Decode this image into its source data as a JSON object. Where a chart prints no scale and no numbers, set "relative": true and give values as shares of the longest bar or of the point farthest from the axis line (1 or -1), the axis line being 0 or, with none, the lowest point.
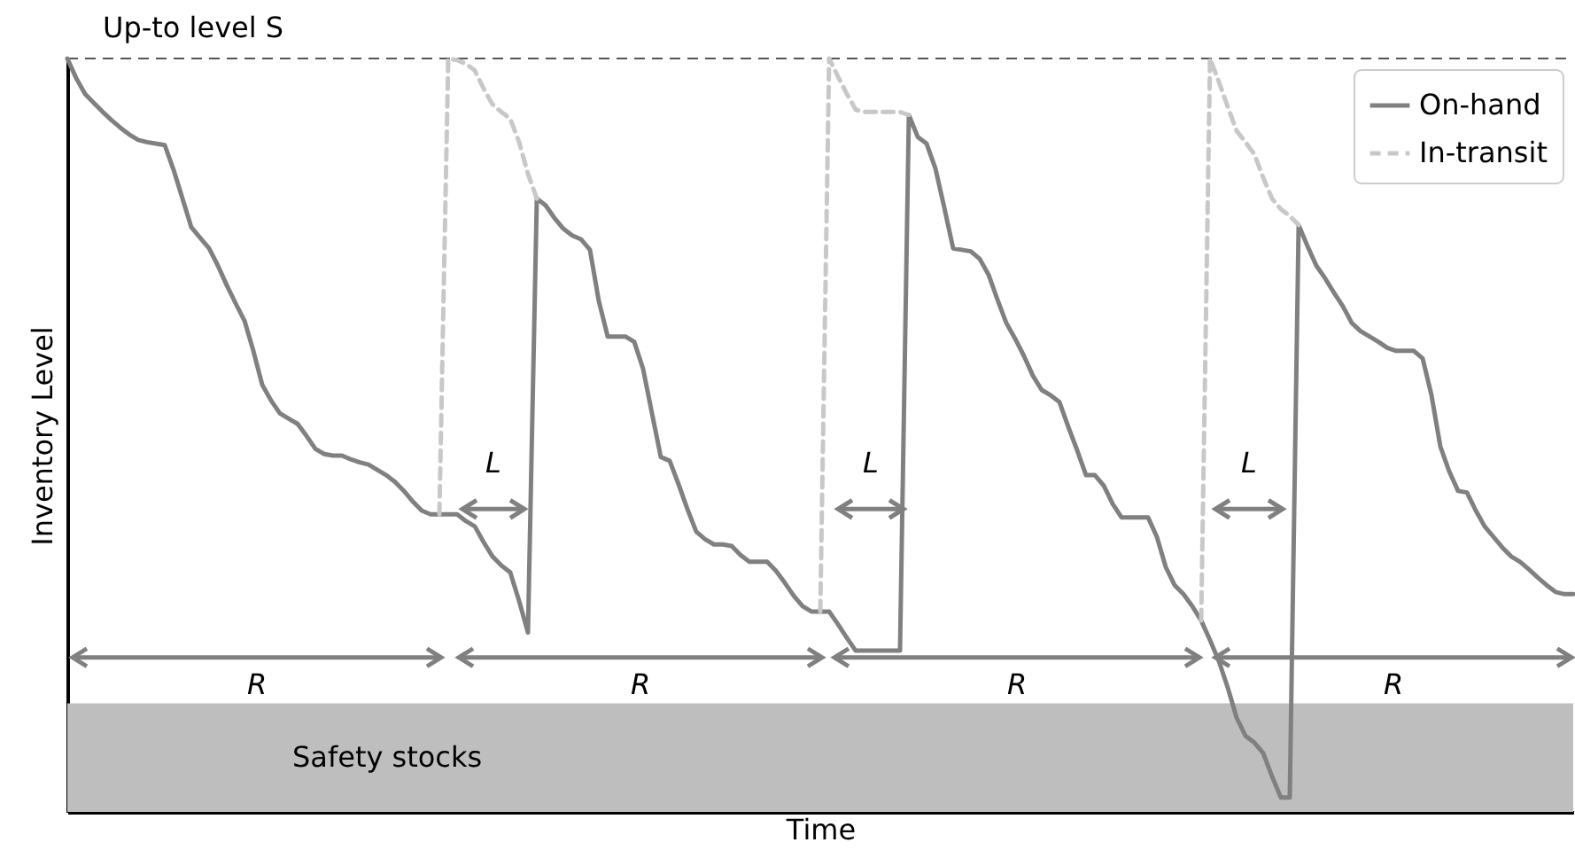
{
  "chart_data": {
    "type": "line",
    "relative": true,
    "xlabel": "Time",
    "ylabel": "Inventory Level",
    "legend": "top right",
    "categories": [
      null,
      null,
      null,
      null,
      null,
      null,
      null,
      null,
      null,
      null,
      null,
      null,
      null,
      null,
      null,
      null,
      null,
      null,
      null,
      null,
      null,
      null,
      null,
      null,
      null,
      null,
      null,
      null,
      null,
      null,
      null,
      null,
      null,
      null,
      null,
      null,
      null,
      null,
      null,
      null,
      null,
      null,
      null,
      null,
      null,
      null,
      null,
      null,
      null,
      null,
      null,
      null,
      null,
      null,
      null,
      null,
      null,
      null,
      null,
      null,
      null,
      null,
      null,
      null,
      null,
      null,
      null,
      null,
      null,
      null,
      null,
      null,
      null,
      null,
      null,
      null,
      null,
      null,
      null,
      null,
      null,
      null,
      null,
      null,
      null,
      null,
      null,
      null,
      null,
      null,
      null,
      null,
      null,
      null,
      null,
      null,
      null,
      null,
      null,
      null,
      null,
      null,
      null,
      null,
      null,
      null,
      null,
      null,
      null,
      null,
      null,
      null,
      null,
      null,
      null,
      null,
      null,
      null,
      null,
      null,
      null,
      null,
      null,
      null,
      null,
      null,
      null,
      null,
      null,
      null,
      null,
      null,
      null,
      null,
      null,
      null,
      null,
      null,
      null,
      null,
      null,
      null,
      null,
      null,
      null,
      null,
      null,
      null,
      null,
      null,
      null,
      null,
      null,
      null,
      null,
      null,
      null,
      null,
      null,
      null,
      null,
      null,
      null,
      null,
      null,
      null,
      null,
      null,
      null,
      null,
      null
    ],
    "series": [
      {
        "name": "On-hand",
        "color": "#808080",
        "line_style": "solid",
        "values": [
          1.0,
          0.974,
          0.953,
          0.941,
          0.929,
          0.918,
          0.908,
          0.899,
          0.892,
          0.889,
          0.887,
          0.885,
          0.852,
          0.814,
          0.776,
          0.762,
          0.748,
          0.725,
          0.699,
          0.675,
          0.652,
          0.612,
          0.567,
          0.546,
          0.529,
          0.522,
          0.515,
          0.499,
          0.482,
          0.475,
          0.473,
          0.473,
          0.468,
          0.464,
          0.461,
          0.454,
          0.447,
          0.438,
          0.426,
          0.412,
          0.4,
          0.395,
          0.395,
          0.395,
          0.395,
          0.386,
          0.379,
          0.358,
          0.339,
          0.327,
          0.318,
          0.28,
          0.238,
          0.814,
          0.805,
          0.788,
          0.774,
          0.765,
          0.76,
          0.746,
          0.678,
          0.631,
          0.631,
          0.631,
          0.624,
          0.588,
          0.529,
          0.471,
          0.466,
          0.435,
          0.402,
          0.372,
          0.362,
          0.355,
          0.355,
          0.353,
          0.341,
          0.332,
          0.332,
          0.332,
          0.32,
          0.304,
          0.287,
          0.273,
          0.266,
          0.266,
          0.266,
          0.249,
          0.231,
          0.214,
          0.214,
          0.214,
          0.214,
          0.214,
          0.214,
          0.925,
          0.896,
          0.887,
          0.854,
          0.802,
          0.748,
          0.746,
          0.744,
          0.734,
          0.713,
          0.68,
          0.649,
          0.628,
          0.605,
          0.579,
          0.56,
          0.553,
          0.544,
          0.511,
          0.48,
          0.447,
          0.447,
          0.433,
          0.409,
          0.391,
          0.391,
          0.391,
          0.391,
          0.365,
          0.325,
          0.301,
          0.289,
          0.273,
          0.254,
          0.228,
          0.2,
          0.165,
          0.125,
          0.101,
          0.092,
          0.078,
          0.047,
          0.019,
          0.019,
          0.779,
          0.751,
          0.725,
          0.708,
          0.689,
          0.671,
          0.649,
          0.638,
          0.631,
          0.624,
          0.616,
          0.612,
          0.612,
          0.612,
          0.602,
          0.553,
          0.485,
          0.452,
          0.426,
          0.424,
          0.4,
          0.379,
          0.365,
          0.351,
          0.339,
          0.332,
          0.322,
          0.311,
          0.301,
          0.292,
          0.289,
          0.289
        ]
      },
      {
        "name": "In-transit",
        "color": "#c8c8c8",
        "line_style": "dashed",
        "values": [
          null,
          null,
          null,
          null,
          null,
          null,
          null,
          null,
          null,
          null,
          null,
          null,
          null,
          null,
          null,
          null,
          null,
          null,
          null,
          null,
          null,
          null,
          null,
          null,
          null,
          null,
          null,
          null,
          null,
          null,
          null,
          null,
          null,
          null,
          null,
          null,
          null,
          null,
          null,
          null,
          null,
          null,
          0.395,
          1.0,
          0.998,
          0.993,
          0.984,
          0.96,
          0.939,
          0.929,
          0.92,
          0.889,
          0.847,
          0.814,
          null,
          null,
          null,
          null,
          null,
          null,
          null,
          null,
          null,
          null,
          null,
          null,
          null,
          null,
          null,
          null,
          null,
          null,
          null,
          null,
          null,
          null,
          null,
          null,
          null,
          null,
          null,
          null,
          null,
          null,
          null,
          0.266,
          1.0,
          0.976,
          0.953,
          0.932,
          0.929,
          0.929,
          0.929,
          0.929,
          0.929,
          0.925,
          null,
          null,
          null,
          null,
          null,
          null,
          null,
          null,
          null,
          null,
          null,
          null,
          null,
          null,
          null,
          null,
          null,
          null,
          null,
          null,
          null,
          null,
          null,
          null,
          null,
          null,
          null,
          null,
          null,
          null,
          null,
          null,
          0.254,
          1.0,
          0.969,
          0.936,
          0.904,
          0.889,
          0.873,
          0.842,
          0.814,
          0.8,
          0.791,
          0.779,
          null,
          null,
          null,
          null,
          null,
          null,
          null,
          null,
          null,
          null,
          null,
          null,
          null,
          null,
          null,
          null,
          null,
          null,
          null,
          null,
          null,
          null,
          null,
          null,
          null,
          null,
          null,
          null,
          null,
          null,
          null
        ]
      }
    ],
    "ref_lines": [
      {
        "axis": "y",
        "value": 1,
        "label": "Up-to level S",
        "color": "#555555",
        "line_style": "dashed"
      }
    ],
    "bands": [
      {
        "axis": "y",
        "from": 0,
        "to": 0.144,
        "label": "Safety stocks",
        "color": "#bebebe"
      }
    ],
    "annotations": [
      "R",
      "R",
      "R",
      "R",
      "L",
      "L",
      "L"
    ]
  }
}
